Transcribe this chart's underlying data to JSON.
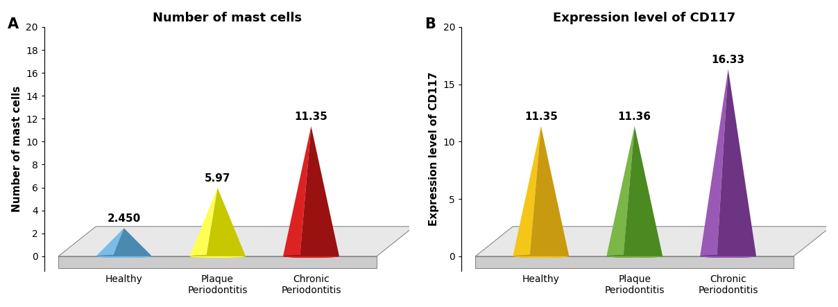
{
  "chart_A": {
    "title": "Number of mast cells",
    "ylabel": "Number of mast cells",
    "label": "A",
    "categories": [
      "Healthy",
      "Plaque\nPeriodontitis",
      "Chronic\nPeriodontitis"
    ],
    "values": [
      2.45,
      5.97,
      11.35
    ],
    "labels": [
      "2.450",
      "5.97",
      "11.35"
    ],
    "colors_left": [
      "#7abde8",
      "#ffff55",
      "#dd2222"
    ],
    "colors_right": [
      "#4a8ab0",
      "#c8c800",
      "#991111"
    ],
    "ylim": [
      0,
      20
    ],
    "yticks": [
      0,
      2,
      4,
      6,
      8,
      10,
      12,
      14,
      16,
      18,
      20
    ]
  },
  "chart_B": {
    "title": "Expression level of CD117",
    "ylabel": "Expression level of CD117",
    "label": "B",
    "categories": [
      "Healthy",
      "Plaque\nPeriodontitis",
      "Chronic\nPeriodontitis"
    ],
    "values": [
      11.35,
      11.36,
      16.33
    ],
    "labels": [
      "11.35",
      "11.36",
      "16.33"
    ],
    "colors_left": [
      "#f5c518",
      "#7ab648",
      "#9b59b6"
    ],
    "colors_right": [
      "#c89a10",
      "#4a8a20",
      "#6c3483"
    ],
    "ylim": [
      0,
      20
    ],
    "yticks": [
      0,
      5,
      10,
      15,
      20
    ]
  },
  "background_color": "#ffffff",
  "floor_top_color": "#e8e8e8",
  "floor_side_color": "#cccccc",
  "floor_edge_color": "#888888",
  "title_fontsize": 13,
  "label_fontsize": 11,
  "tick_fontsize": 10,
  "value_fontsize": 11,
  "panel_label_fontsize": 15
}
